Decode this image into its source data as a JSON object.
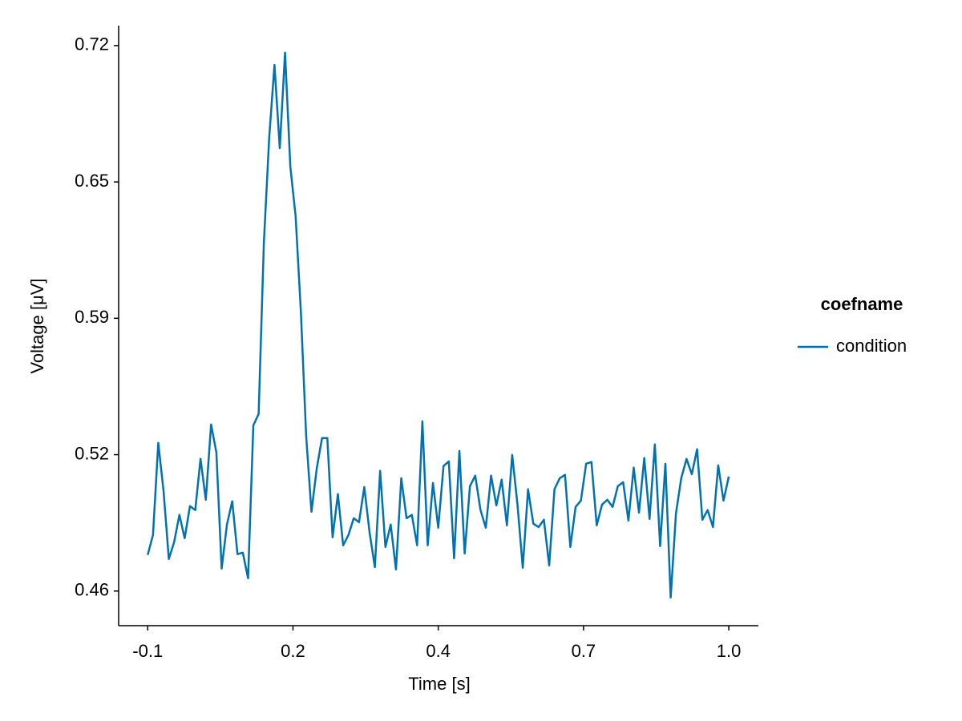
{
  "chart_data": {
    "type": "line",
    "x_label": "Time [s]",
    "y_label": "Voltage [μV]",
    "legend_title": "coefname",
    "legend_position": "right",
    "grid": false,
    "xlim": [
      -0.155,
      1.056
    ],
    "ylim": [
      0.441,
      0.727
    ],
    "xticks": [
      {
        "value": -0.1,
        "label": "-0.1"
      },
      {
        "value": 0.175,
        "label": "0.2"
      },
      {
        "value": 0.45,
        "label": "0.4"
      },
      {
        "value": 0.725,
        "label": "0.7"
      },
      {
        "value": 1.0,
        "label": "1.0"
      }
    ],
    "yticks": [
      {
        "value": 0.4575,
        "label": "0.46"
      },
      {
        "value": 0.5225,
        "label": "0.52"
      },
      {
        "value": 0.5875,
        "label": "0.59"
      },
      {
        "value": 0.6525,
        "label": "0.65"
      },
      {
        "value": 0.7175,
        "label": "0.72"
      }
    ],
    "x": [
      -0.1,
      -0.09,
      -0.08,
      -0.07,
      -0.06,
      -0.05,
      -0.04,
      -0.03,
      -0.02,
      -0.01,
      0.0,
      0.01,
      0.02,
      0.03,
      0.04,
      0.05,
      0.06,
      0.07,
      0.08,
      0.09,
      0.1,
      0.11,
      0.12,
      0.13,
      0.14,
      0.15,
      0.16,
      0.17,
      0.18,
      0.19,
      0.2,
      0.21,
      0.22,
      0.23,
      0.24,
      0.25,
      0.26,
      0.27,
      0.28,
      0.29,
      0.3,
      0.31,
      0.32,
      0.33,
      0.34,
      0.35,
      0.36,
      0.37,
      0.38,
      0.39,
      0.4,
      0.41,
      0.42,
      0.43,
      0.44,
      0.45,
      0.46,
      0.47,
      0.48,
      0.49,
      0.5,
      0.51,
      0.52,
      0.53,
      0.54,
      0.55,
      0.56,
      0.57,
      0.58,
      0.59,
      0.6,
      0.61,
      0.62,
      0.63,
      0.64,
      0.65,
      0.66,
      0.67,
      0.68,
      0.69,
      0.7,
      0.71,
      0.72,
      0.73,
      0.74,
      0.75,
      0.76,
      0.77,
      0.78,
      0.79,
      0.8,
      0.81,
      0.82,
      0.83,
      0.84,
      0.85,
      0.86,
      0.87,
      0.88,
      0.89,
      0.9,
      0.91,
      0.92,
      0.93,
      0.94,
      0.95,
      0.96,
      0.97,
      0.98,
      0.99,
      1.0
    ],
    "series": [
      {
        "name": "condition",
        "color": "#0072b2",
        "values": [
          0.4747,
          0.4842,
          0.5281,
          0.5052,
          0.4728,
          0.4808,
          0.4938,
          0.4827,
          0.498,
          0.4961,
          0.5205,
          0.501,
          0.5369,
          0.5235,
          0.4682,
          0.4892,
          0.5003,
          0.4751,
          0.4758,
          0.4636,
          0.5365,
          0.5419,
          0.624,
          0.6736,
          0.7083,
          0.6686,
          0.7141,
          0.6598,
          0.6362,
          0.5904,
          0.5312,
          0.4953,
          0.5159,
          0.5304,
          0.5304,
          0.4831,
          0.5037,
          0.4793,
          0.4842,
          0.4922,
          0.4903,
          0.5071,
          0.4854,
          0.4689,
          0.5148,
          0.4785,
          0.4892,
          0.4678,
          0.5113,
          0.4922,
          0.4938,
          0.4793,
          0.5384,
          0.4793,
          0.509,
          0.4877,
          0.5171,
          0.5193,
          0.4731,
          0.5243,
          0.4754,
          0.5075,
          0.5125,
          0.4961,
          0.4877,
          0.5125,
          0.4983,
          0.5106,
          0.4888,
          0.5224,
          0.4987,
          0.4686,
          0.506,
          0.4896,
          0.488,
          0.4915,
          0.4697,
          0.506,
          0.5113,
          0.5129,
          0.4785,
          0.4976,
          0.5006,
          0.5182,
          0.519,
          0.4888,
          0.4987,
          0.501,
          0.4976,
          0.5075,
          0.5094,
          0.4911,
          0.5163,
          0.4949,
          0.5209,
          0.4919,
          0.5274,
          0.4789,
          0.5182,
          0.4544,
          0.4945,
          0.5113,
          0.5205,
          0.5132,
          0.5251,
          0.4915,
          0.4961,
          0.488,
          0.5174,
          0.5006,
          0.5121
        ]
      }
    ]
  }
}
